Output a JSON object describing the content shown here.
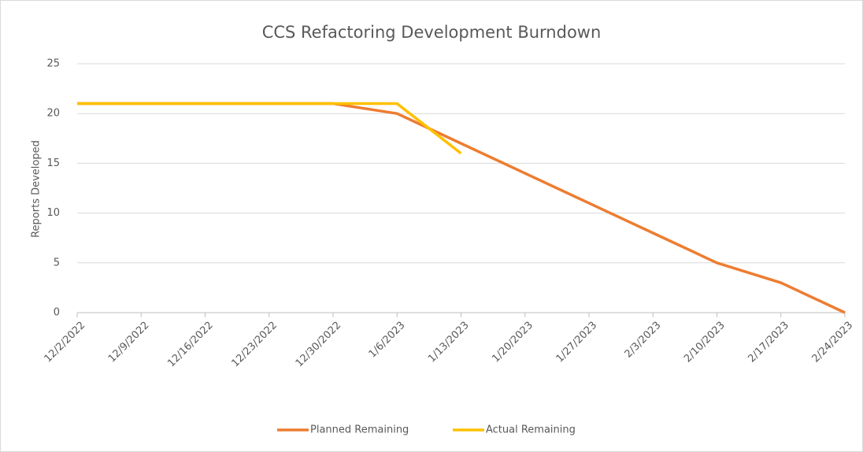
{
  "chart_data": {
    "type": "line",
    "title": "CCS Refactoring Development Burndown",
    "y_label": "Reports Developed",
    "categories": [
      "12/2/2022",
      "12/9/2022",
      "12/16/2022",
      "12/23/2022",
      "12/30/2022",
      "1/6/2023",
      "1/13/2023",
      "1/20/2023",
      "1/27/2023",
      "2/3/2023",
      "2/10/2023",
      "2/17/2023",
      "2/24/2023"
    ],
    "series": [
      {
        "name": "Planned Remaining",
        "color": "#ed7d31",
        "values": [
          21,
          21,
          21,
          21,
          21,
          20,
          17,
          14,
          11,
          8,
          5,
          3,
          0
        ]
      },
      {
        "name": "Actual Remaining",
        "color": "#ffc000",
        "values": [
          21,
          21,
          21,
          21,
          21,
          21,
          16,
          null,
          null,
          null,
          null,
          null,
          null
        ]
      }
    ],
    "ylim": [
      0,
      25
    ],
    "yticks": [
      0,
      5,
      10,
      15,
      20,
      25
    ],
    "grid": true,
    "legend": "bottom"
  }
}
